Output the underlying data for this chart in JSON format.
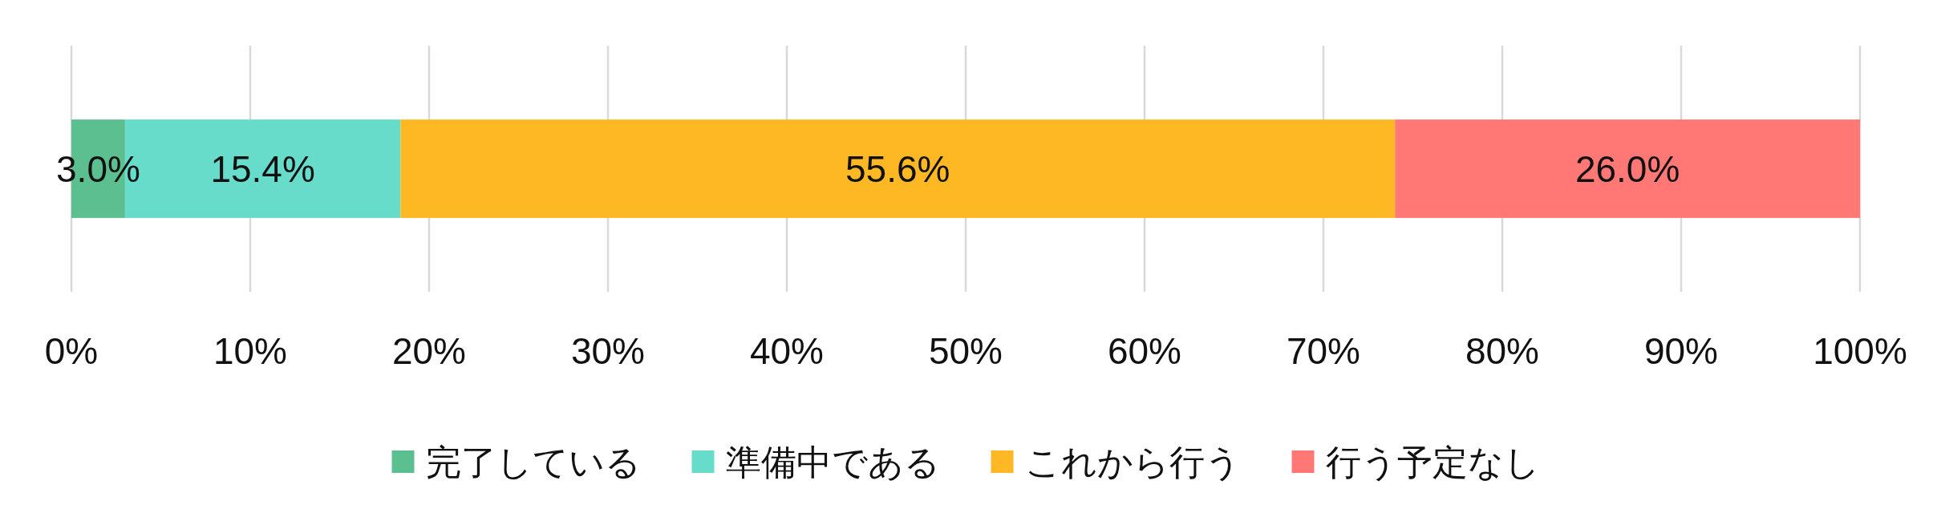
{
  "chart_data": {
    "type": "bar",
    "orientation": "horizontal",
    "stacked": true,
    "categories": [
      null
    ],
    "series": [
      {
        "name": "完了している",
        "color": "#5cbf8f",
        "values": [
          3.0
        ],
        "value_labels": [
          "3.0%"
        ]
      },
      {
        "name": "準備中である",
        "color": "#67dccb",
        "values": [
          15.4
        ],
        "value_labels": [
          "15.4%"
        ]
      },
      {
        "name": "これから行う",
        "color": "#fdb823",
        "values": [
          55.6
        ],
        "value_labels": [
          "55.6%"
        ]
      },
      {
        "name": "行う予定なし",
        "color": "#ff7875",
        "values": [
          26.0
        ],
        "value_labels": [
          "26.0%"
        ]
      }
    ],
    "xlim": [
      0,
      100
    ],
    "xticks": [
      {
        "value": 0,
        "label": "0%"
      },
      {
        "value": 10,
        "label": "10%"
      },
      {
        "value": 20,
        "label": "20%"
      },
      {
        "value": 30,
        "label": "30%"
      },
      {
        "value": 40,
        "label": "40%"
      },
      {
        "value": 50,
        "label": "50%"
      },
      {
        "value": 60,
        "label": "60%"
      },
      {
        "value": 70,
        "label": "70%"
      },
      {
        "value": 80,
        "label": "80%"
      },
      {
        "value": 90,
        "label": "90%"
      },
      {
        "value": 100,
        "label": "100%"
      }
    ],
    "grid": "x",
    "legend": "bottom",
    "tick_labels": "x"
  }
}
